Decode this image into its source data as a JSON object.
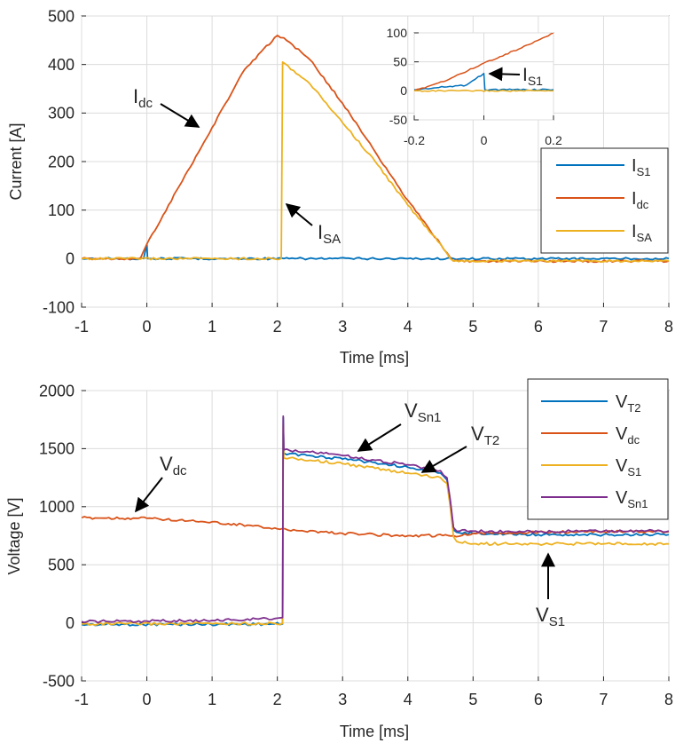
{
  "chart_data": [
    {
      "type": "line",
      "xlabel": "Time [ms]",
      "ylabel": "Current [A]",
      "xlim": [
        -1,
        8
      ],
      "ylim": [
        -100,
        500
      ],
      "grid": true,
      "legend_position": "right",
      "xticks": [
        "-1",
        "0",
        "1",
        "2",
        "3",
        "4",
        "5",
        "6",
        "7",
        "8"
      ],
      "yticks": [
        "500",
        "400",
        "300",
        "200",
        "100",
        "0",
        "-100"
      ],
      "series": [
        {
          "name": "I",
          "sub": "S1",
          "color": "#0072BD",
          "x": [
            -1,
            -0.05,
            0,
            0.01,
            0.05,
            2.1,
            4.7,
            8
          ],
          "y": [
            0,
            0,
            30,
            0,
            0,
            0,
            0,
            0
          ]
        },
        {
          "name": "I",
          "sub": "dc",
          "color": "#D95319",
          "x": [
            -1,
            -0.1,
            0,
            0.5,
            1.0,
            1.5,
            2.0,
            2.1,
            2.5,
            3.0,
            3.5,
            4.0,
            4.5,
            4.66,
            4.7,
            8
          ],
          "y": [
            0,
            0,
            30,
            150,
            270,
            390,
            460,
            455,
            410,
            320,
            220,
            120,
            30,
            0,
            -5,
            -5
          ]
        },
        {
          "name": "I",
          "sub": "SA",
          "color": "#EDB120",
          "x": [
            -1,
            2.06,
            2.08,
            2.5,
            3.0,
            3.5,
            4.0,
            4.5,
            4.65,
            4.7,
            8
          ],
          "y": [
            0,
            0,
            405,
            360,
            280,
            200,
            110,
            30,
            0,
            -5,
            -5
          ]
        }
      ],
      "annotations": [
        {
          "text": "I",
          "sub": "dc",
          "at_x": 0.8,
          "at_y": 270
        },
        {
          "text": "I",
          "sub": "SA",
          "at_x": 2.1,
          "at_y": 120
        }
      ],
      "inset": {
        "xlim": [
          -0.2,
          0.2
        ],
        "ylim": [
          -50,
          100
        ],
        "xticks": [
          "-0.2",
          "0",
          "0.2"
        ],
        "yticks": [
          "100",
          "50",
          "0",
          "-50"
        ],
        "series": [
          {
            "name": "I",
            "sub": "S1",
            "color": "#0072BD",
            "x": [
              -0.2,
              -0.05,
              0,
              0.003,
              0.2
            ],
            "y": [
              2,
              10,
              30,
              2,
              2
            ]
          },
          {
            "name": "I",
            "sub": "dc",
            "color": "#D95319",
            "x": [
              -0.2,
              -0.1,
              0,
              0.1,
              0.2
            ],
            "y": [
              0,
              20,
              48,
              72,
              100
            ]
          },
          {
            "name": "I",
            "sub": "SA",
            "color": "#EDB120",
            "x": [
              -0.2,
              0.2
            ],
            "y": [
              0,
              0
            ]
          }
        ],
        "annotation": {
          "text": "I",
          "sub": "S1",
          "at_x": 0.003,
          "at_y": 28
        }
      }
    },
    {
      "type": "line",
      "xlabel": "Time [ms]",
      "ylabel": "Voltage [V]",
      "xlim": [
        -1,
        8
      ],
      "ylim": [
        -500,
        2000
      ],
      "grid": true,
      "legend_position": "top-right",
      "xticks": [
        "-1",
        "0",
        "1",
        "2",
        "3",
        "4",
        "5",
        "6",
        "7",
        "8"
      ],
      "yticks": [
        "2000",
        "1500",
        "1000",
        "500",
        "0",
        "-500"
      ],
      "series": [
        {
          "name": "V",
          "sub": "T2",
          "color": "#0072BD",
          "x": [
            -1,
            2.08,
            2.09,
            2.1,
            2.5,
            3.0,
            3.5,
            4.0,
            4.5,
            4.6,
            4.65,
            4.7,
            4.75,
            5.0,
            6.0,
            7.0,
            8.0
          ],
          "y": [
            -15,
            -10,
            1770,
            1460,
            1440,
            1410,
            1380,
            1340,
            1290,
            1230,
            1050,
            800,
            780,
            770,
            760,
            760,
            760
          ]
        },
        {
          "name": "V",
          "sub": "dc",
          "color": "#D95319",
          "x": [
            -1,
            0,
            1,
            2,
            3,
            4,
            4.7,
            5,
            6,
            7,
            8
          ],
          "y": [
            905,
            900,
            870,
            810,
            770,
            750,
            750,
            770,
            780,
            785,
            785
          ]
        },
        {
          "name": "V",
          "sub": "S1",
          "color": "#EDB120",
          "x": [
            -1,
            2.08,
            2.09,
            2.1,
            2.5,
            3.0,
            3.5,
            4.0,
            4.5,
            4.6,
            4.65,
            4.7,
            4.75,
            5.0,
            6.0,
            7.0,
            8.0
          ],
          "y": [
            -10,
            -5,
            1700,
            1420,
            1400,
            1370,
            1330,
            1290,
            1250,
            1200,
            1000,
            740,
            700,
            680,
            680,
            680,
            680
          ]
        },
        {
          "name": "V",
          "sub": "Sn1",
          "color": "#7E2F8E",
          "x": [
            -1,
            0,
            1,
            2,
            2.08,
            2.09,
            2.1,
            2.5,
            3.0,
            3.5,
            4.0,
            4.5,
            4.6,
            4.65,
            4.7,
            4.75,
            5.0,
            6.0,
            7.0,
            8.0
          ],
          "y": [
            10,
            15,
            20,
            40,
            45,
            1780,
            1490,
            1470,
            1440,
            1400,
            1360,
            1310,
            1250,
            1060,
            820,
            790,
            790,
            785,
            790,
            790
          ]
        }
      ],
      "annotations": [
        {
          "text": "V",
          "sub": "dc",
          "at_x": -0.15,
          "at_y": 905
        },
        {
          "text": "V",
          "sub": "Sn1",
          "at_x": 3.3,
          "at_y": 1460
        },
        {
          "text": "V",
          "sub": "T2",
          "at_x": 4.1,
          "at_y": 1330
        },
        {
          "text": "V",
          "sub": "S1",
          "at_x": 6.2,
          "at_y": 680
        }
      ]
    }
  ]
}
